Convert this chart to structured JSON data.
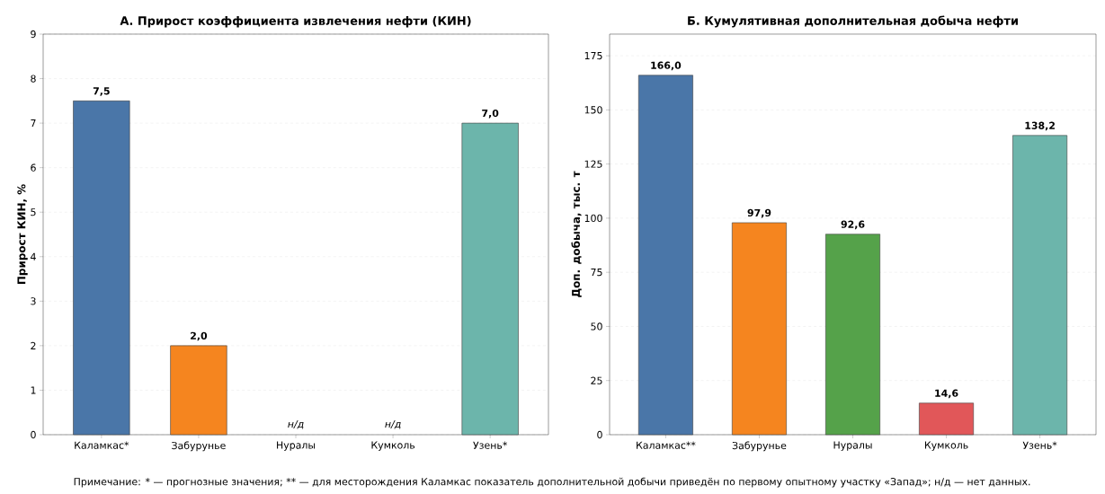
{
  "chart_data": [
    {
      "type": "bar",
      "title": "А. Прирост коэффициента извлечения нефти (КИН)",
      "ylabel": "Прирост КИН, %",
      "categories": [
        "Каламкас*",
        "Забурунье",
        "Нуралы",
        "Кумколь",
        "Узень*"
      ],
      "values": [
        7.5,
        2.0,
        null,
        null,
        7.0
      ],
      "value_labels": [
        "7,5",
        "2,0",
        "н/д",
        "н/д",
        "7,0"
      ],
      "colors": [
        "#4a76a8",
        "#f5851f",
        "#55a24a",
        "#e15759",
        "#6cb5ab"
      ],
      "ylim": [
        0,
        9
      ],
      "yticks": [
        0,
        1,
        2,
        3,
        4,
        5,
        6,
        7,
        8,
        9
      ],
      "grid": "y",
      "annotations": [
        "Примечание: * — прогнозные значения; ** — для месторождения Каламкас показатель дополнительной добычи приведён по первому опытному участку «Запад»; н/д — нет данных."
      ]
    },
    {
      "type": "bar",
      "title": "Б. Кумулятивная дополнительная добыча нефти",
      "ylabel": "Доп. добыча, тыс. т",
      "categories": [
        "Каламкас**",
        "Забурунье",
        "Нуралы",
        "Кумколь",
        "Узень*"
      ],
      "values": [
        166.0,
        97.9,
        92.6,
        14.6,
        138.2
      ],
      "value_labels": [
        "166,0",
        "97,9",
        "92,6",
        "14,6",
        "138,2"
      ],
      "colors": [
        "#4a76a8",
        "#f5851f",
        "#55a24a",
        "#e15759",
        "#6cb5ab"
      ],
      "ylim": [
        0,
        185
      ],
      "yticks": [
        0,
        25,
        50,
        75,
        100,
        125,
        150,
        175
      ],
      "grid": "y"
    }
  ]
}
